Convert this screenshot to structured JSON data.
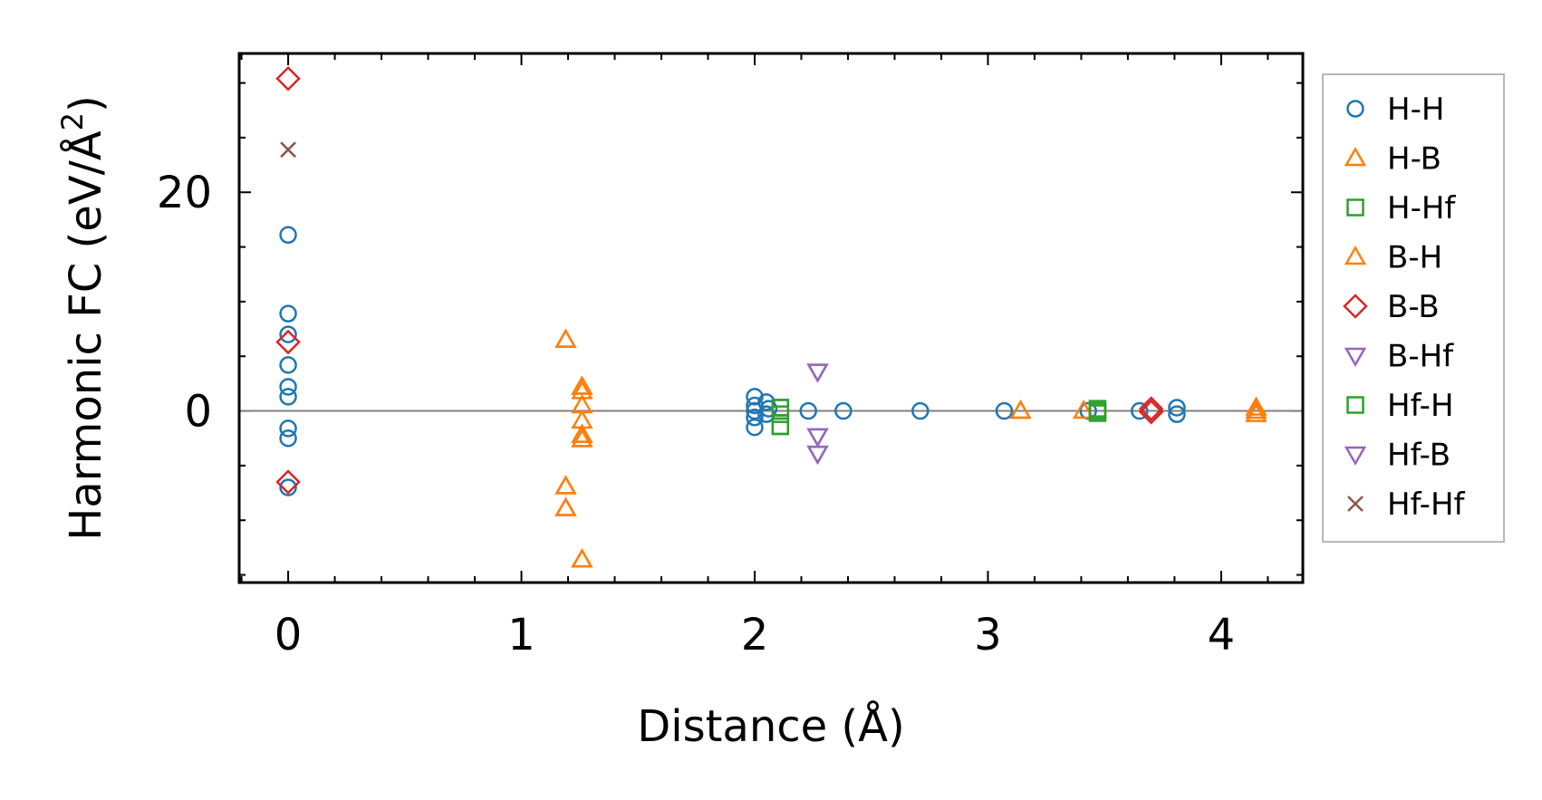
{
  "chart_data": {
    "type": "scatter",
    "title": "",
    "xlabel": "Distance (Å)",
    "ylabel_main": "Harmonic FC (eV/Å",
    "ylabel_sup": "2",
    "ylabel_close": ")",
    "xlim": [
      -0.21,
      4.35
    ],
    "ylim": [
      -15.7,
      32.7
    ],
    "x_ticks": [
      0,
      1,
      2,
      3,
      4
    ],
    "x_tick_labels": [
      "0",
      "1",
      "2",
      "3",
      "4"
    ],
    "y_ticks": [
      0,
      20
    ],
    "y_tick_labels": [
      "0",
      "20"
    ],
    "legend_position": "outside-right",
    "zero_line": true,
    "series": [
      {
        "name": "H-H",
        "marker": "circle",
        "color": "#1f77b4",
        "points": [
          [
            0,
            16.1
          ],
          [
            0,
            8.9
          ],
          [
            0,
            7.0
          ],
          [
            0,
            4.2
          ],
          [
            0,
            2.2
          ],
          [
            0,
            1.3
          ],
          [
            0,
            -1.6
          ],
          [
            0,
            -2.5
          ],
          [
            0,
            -7.0
          ],
          [
            2.0,
            1.3
          ],
          [
            2.0,
            0.5
          ],
          [
            2.0,
            0.0
          ],
          [
            2.0,
            -0.6
          ],
          [
            2.0,
            -1.5
          ],
          [
            2.05,
            0.8
          ],
          [
            2.05,
            -0.3
          ],
          [
            2.06,
            0.2
          ],
          [
            2.23,
            0.0
          ],
          [
            2.38,
            0.0
          ],
          [
            2.71,
            0.0
          ],
          [
            3.07,
            0.0
          ],
          [
            3.43,
            0.0
          ],
          [
            3.65,
            0.0
          ],
          [
            3.81,
            0.3
          ],
          [
            3.81,
            -0.3
          ]
        ]
      },
      {
        "name": "H-B",
        "marker": "triangle-up",
        "color": "#ff7f0e",
        "points": [
          [
            1.19,
            6.5
          ],
          [
            1.26,
            2.2
          ],
          [
            1.26,
            1.8
          ],
          [
            1.26,
            0.5
          ],
          [
            1.26,
            -0.9
          ],
          [
            1.26,
            -2.2
          ],
          [
            1.26,
            -2.6
          ],
          [
            1.19,
            -6.9
          ],
          [
            1.19,
            -8.9
          ],
          [
            1.26,
            -13.6
          ],
          [
            3.14,
            0.0
          ],
          [
            3.41,
            0.0
          ],
          [
            4.15,
            0.3
          ],
          [
            4.15,
            -0.3
          ]
        ]
      },
      {
        "name": "H-Hf",
        "marker": "square",
        "color": "#2ca02c",
        "points": [
          [
            2.11,
            0.3
          ],
          [
            2.11,
            -0.3
          ],
          [
            2.11,
            -1.4
          ],
          [
            3.47,
            0.2
          ],
          [
            3.47,
            -0.2
          ]
        ]
      },
      {
        "name": "B-H",
        "marker": "triangle-up",
        "color": "#ff7f0e",
        "points": [
          [
            1.19,
            6.5
          ],
          [
            1.26,
            2.2
          ],
          [
            1.26,
            -2.2
          ],
          [
            1.26,
            -2.6
          ],
          [
            1.19,
            -6.9
          ],
          [
            1.19,
            -8.9
          ],
          [
            1.26,
            -13.6
          ],
          [
            3.14,
            0.0
          ],
          [
            4.15,
            0.0
          ]
        ]
      },
      {
        "name": "B-B",
        "marker": "diamond",
        "color": "#d62728",
        "points": [
          [
            0,
            30.4
          ],
          [
            0,
            6.3
          ],
          [
            0,
            -6.5
          ],
          [
            3.7,
            0.2
          ],
          [
            3.7,
            -0.1
          ]
        ]
      },
      {
        "name": "B-Hf",
        "marker": "triangle-down",
        "color": "#9467bd",
        "points": [
          [
            2.27,
            3.6
          ],
          [
            2.27,
            -2.3
          ],
          [
            2.27,
            -3.9
          ]
        ]
      },
      {
        "name": "Hf-H",
        "marker": "square",
        "color": "#2ca02c",
        "points": [
          [
            2.11,
            0.3
          ],
          [
            2.11,
            -1.4
          ],
          [
            3.47,
            0.0
          ]
        ]
      },
      {
        "name": "Hf-B",
        "marker": "triangle-down",
        "color": "#9467bd",
        "points": [
          [
            2.27,
            3.6
          ],
          [
            2.27,
            -2.3
          ],
          [
            2.27,
            -3.9
          ]
        ]
      },
      {
        "name": "Hf-Hf",
        "marker": "x",
        "color": "#8c564b",
        "points": [
          [
            0,
            23.9
          ]
        ]
      }
    ]
  }
}
